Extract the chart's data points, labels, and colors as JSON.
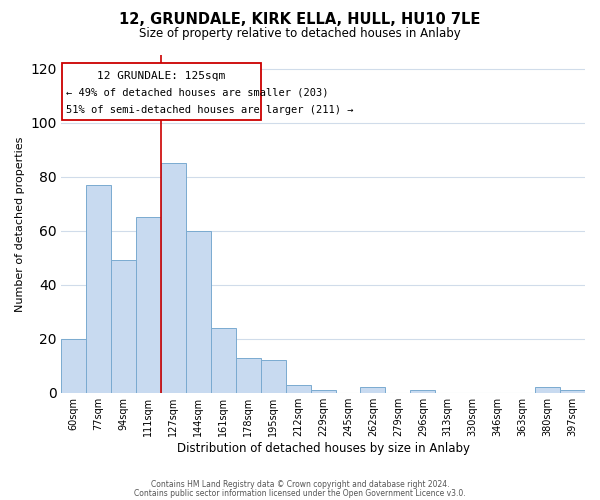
{
  "title": "12, GRUNDALE, KIRK ELLA, HULL, HU10 7LE",
  "subtitle": "Size of property relative to detached houses in Anlaby",
  "xlabel": "Distribution of detached houses by size in Anlaby",
  "ylabel": "Number of detached properties",
  "bar_labels": [
    "60sqm",
    "77sqm",
    "94sqm",
    "111sqm",
    "127sqm",
    "144sqm",
    "161sqm",
    "178sqm",
    "195sqm",
    "212sqm",
    "229sqm",
    "245sqm",
    "262sqm",
    "279sqm",
    "296sqm",
    "313sqm",
    "330sqm",
    "346sqm",
    "363sqm",
    "380sqm",
    "397sqm"
  ],
  "bar_values": [
    20,
    77,
    49,
    65,
    85,
    60,
    24,
    13,
    12,
    3,
    1,
    0,
    2,
    0,
    1,
    0,
    0,
    0,
    0,
    2,
    1
  ],
  "bar_color": "#c8daf0",
  "bar_edge_color": "#7aaad0",
  "vline_color": "#cc0000",
  "vline_x_index": 4,
  "annotation_line1": "12 GRUNDALE: 125sqm",
  "annotation_line2": "← 49% of detached houses are smaller (203)",
  "annotation_line3": "51% of semi-detached houses are larger (211) →",
  "ylim": [
    0,
    125
  ],
  "yticks": [
    0,
    20,
    40,
    60,
    80,
    100,
    120
  ],
  "footer_line1": "Contains HM Land Registry data © Crown copyright and database right 2024.",
  "footer_line2": "Contains public sector information licensed under the Open Government Licence v3.0.",
  "background_color": "#ffffff",
  "grid_color": "#d0dcea"
}
